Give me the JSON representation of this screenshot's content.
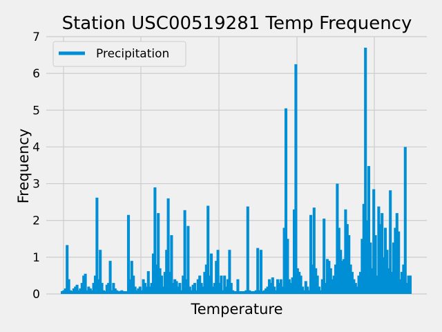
{
  "chart_data": {
    "type": "line",
    "title": "Station USC00519281 Temp Frequency",
    "xlabel": "Temperature",
    "ylabel": "Frequency",
    "ylim": [
      0,
      7
    ],
    "yticks": [
      0,
      1,
      2,
      3,
      4,
      5,
      6,
      7
    ],
    "grid": true,
    "legend": {
      "position": "top-left"
    },
    "color": "#008fd5",
    "series": [
      {
        "name": "Precipitation",
        "values": [
          0.05,
          0.1,
          0.15,
          1.33,
          0.4,
          0.1,
          0.05,
          0.15,
          0.2,
          0.25,
          0.1,
          0.15,
          0.3,
          0.5,
          0.55,
          0.1,
          0.2,
          0.15,
          0.1,
          0.3,
          0.5,
          2.62,
          0.4,
          1.2,
          0.3,
          0.1,
          0.05,
          0.25,
          0.3,
          0.9,
          0.1,
          0.3,
          0.15,
          0.1,
          0.05,
          0.08,
          0.1,
          0.05,
          0.03,
          0.05,
          2.15,
          0.4,
          0.9,
          0.5,
          0.2,
          0.1,
          0.15,
          0.2,
          0.1,
          0.4,
          0.3,
          0.2,
          0.62,
          0.2,
          0.3,
          1.1,
          2.9,
          0.8,
          2.2,
          0.7,
          0.5,
          0.2,
          0.6,
          1.2,
          2.6,
          0.6,
          1.6,
          0.3,
          0.4,
          0.35,
          0.2,
          0.3,
          0.1,
          0.5,
          2.28,
          0.4,
          1.85,
          0.2,
          0.1,
          0.25,
          0.3,
          0.1,
          0.4,
          0.5,
          0.3,
          0.2,
          0.6,
          0.8,
          2.4,
          0.5,
          1.1,
          0.2,
          0.3,
          0.9,
          1.2,
          0.3,
          0.5,
          0.1,
          0.5,
          0.2,
          0.4,
          1.2,
          0.3,
          0.1,
          0.05,
          null,
          0.4,
          null,
          null,
          null,
          0.05,
          0.1,
          2.38,
          0.1,
          null,
          null,
          0.05,
          0.1,
          1.25,
          0.1,
          1.2,
          0.05,
          0.1,
          0.15,
          0.2,
          0.4,
          0.3,
          0.45,
          0.2,
          0.1,
          0.4,
          0.3,
          0.4,
          0.2,
          1.8,
          5.05,
          1.5,
          0.4,
          0.3,
          0.45,
          2.3,
          6.25,
          0.7,
          0.6,
          0.5,
          0.2,
          0.1,
          0.35,
          0.2,
          0.1,
          2.15,
          0.8,
          2.35,
          0.7,
          0.5,
          0.2,
          0.1,
          0.4,
          2.05,
          0.3,
          0.95,
          0.9,
          0.7,
          0.4,
          0.5,
          0.8,
          3.0,
          1.8,
          1.2,
          0.9,
          0.95,
          2.3,
          1.9,
          1.6,
          0.8,
          0.6,
          0.4,
          0.3,
          0.2,
          0.5,
          0.6,
          1.5,
          2.45,
          6.7,
          2.0,
          3.48,
          1.4,
          0.7,
          2.85,
          1.6,
          0.5,
          2.38,
          1.9,
          2.2,
          1.0,
          1.8,
          1.2,
          0.7,
          2.82,
          0.6,
          1.4,
          1.8,
          2.2,
          1.7,
          0.4,
          0.6,
          0.8,
          4.0,
          0.3,
          0.5,
          0.5
        ]
      }
    ]
  }
}
